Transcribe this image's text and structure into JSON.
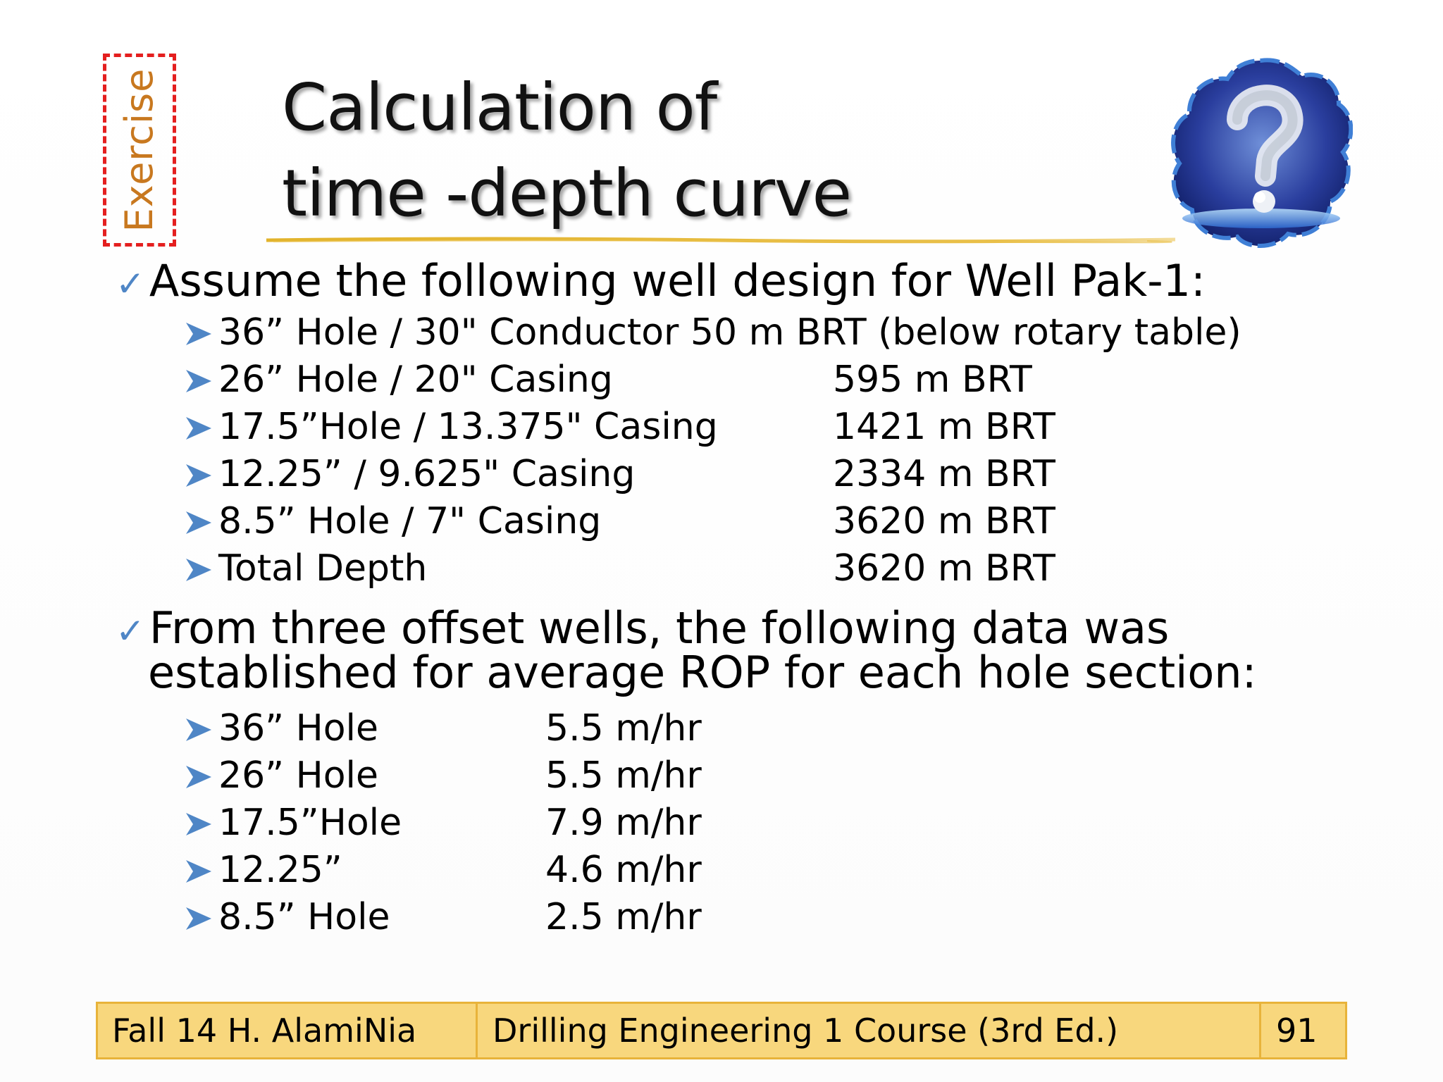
{
  "tag": "Exercise",
  "title": {
    "line1": "Calculation of",
    "line2": "time -depth curve"
  },
  "section1": {
    "heading": "Assume the following well design for Well Pak-1:",
    "rows": [
      {
        "label": "36” Hole / 30\" Conductor  50 m BRT (below rotary table)",
        "value": ""
      },
      {
        "label": "26” Hole / 20\" Casing",
        "value": "595 m BRT"
      },
      {
        "label": "17.5”Hole / 13.375\" Casing",
        "value": "1421 m BRT"
      },
      {
        "label": "12.25” / 9.625\" Casing",
        "value": "2334 m BRT"
      },
      {
        "label": "8.5” Hole / 7\" Casing",
        "value": "3620 m BRT"
      },
      {
        "label": "Total Depth",
        "value": "3620 m BRT"
      }
    ]
  },
  "section2": {
    "heading_line1": "From three offset wells, the following data was",
    "heading_line2": "established for average ROP for each hole section:",
    "rows": [
      {
        "label": "36” Hole",
        "value": "5.5 m/hr"
      },
      {
        "label": "26” Hole",
        "value": "5.5 m/hr"
      },
      {
        "label": "17.5”Hole",
        "value": "7.9 m/hr"
      },
      {
        "label": "12.25”",
        "value": "4.6 m/hr"
      },
      {
        "label": "8.5” Hole",
        "value": "2.5 m/hr"
      }
    ]
  },
  "footer": {
    "left": "Fall 14 H. AlamiNia",
    "middle": "Drilling Engineering 1 Course (3rd Ed.)",
    "page": "91"
  },
  "colors": {
    "accent_blue": "#4f86c6",
    "exercise_red": "#e41f1f",
    "exercise_text": "#c8781f",
    "footer_fill": "#f8d77d",
    "footer_border": "#e8b33a"
  },
  "icons": [
    "check-icon",
    "arrow-bullet-icon",
    "question-mark-icon"
  ]
}
